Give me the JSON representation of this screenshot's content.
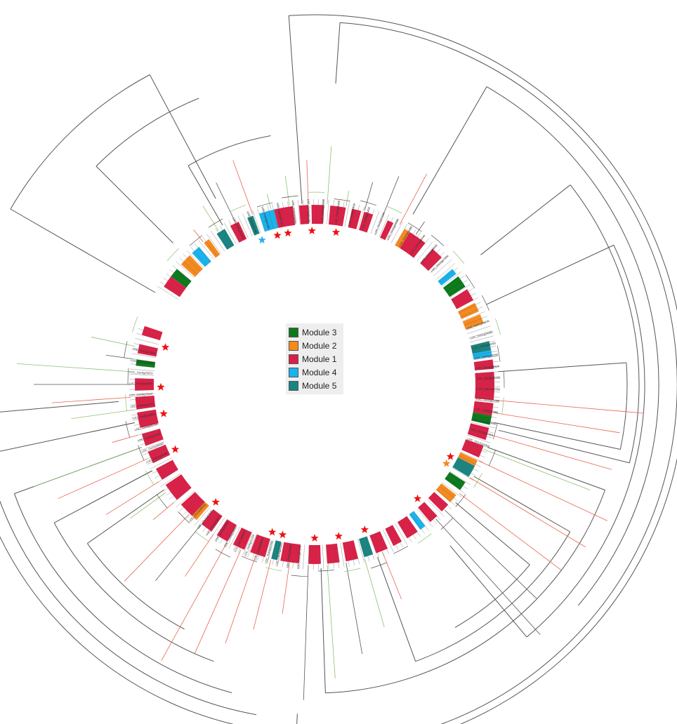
{
  "colors": {
    "branch_gray": "#555555",
    "branch_red": "#e8654d",
    "branch_green": "#8fbf6e",
    "star_red": "#ee1111",
    "star_orange": "#f08a1a",
    "star_blue": "#2ab0e6"
  },
  "legend": {
    "items": [
      {
        "label": "Module 3",
        "color": "#0b7a1c"
      },
      {
        "label": "Module 2",
        "color": "#f58a1f"
      },
      {
        "label": "Module 1",
        "color": "#dc1f46"
      },
      {
        "label": "Module 4",
        "color": "#19b3ee"
      },
      {
        "label": "Module 5",
        "color": "#188582"
      }
    ]
  },
  "leaf_labels": {
    "top": [
      "LOC_Os01g01650",
      "LOC_Os02g03790",
      "LOC_Os03g01390",
      "LOC_Os03g02710",
      "LOC_Os04g05030",
      "LOC_Os05g05290",
      "LOC_Os06g02090",
      "LOC_Os07g01410",
      "LOC_Os08g03510",
      "LOC_Os09g01470",
      "LOC_Os10g02210",
      "LOC_Os11g04090",
      "LOC_Os12g01280",
      "LOC_Os01g06740",
      "LOC_Os02g08010",
      "LOC_Os03g07290"
    ],
    "left_upper": [
      "LOC_Os01g60490",
      "LOC_Os02g38480",
      "LOC_Os03g19780",
      "LOC_Os04g46740",
      "LOC_Os05g18950",
      "LOC_Os06g01670",
      "LOC_Os08g29410",
      "LOC_Os09g28490",
      "LOC_Os10g25070",
      "LOC_Os11g02390",
      "LOC_Os12g40890"
    ],
    "right": [
      "LOC_Os01g14670",
      "LOC_Os02g24490",
      "LOC_Os03g40490",
      "LOC_Os04g19280",
      "LOC_Os05g48500",
      "LOC_Os06g35430",
      "LOC_Os07g32560",
      "LOC_Os08g04890",
      "LOC_Os09g29960",
      "LOC_Os10g23490",
      "LOC_Os11g30410",
      "LOC_Os12g24320"
    ],
    "bottom": [
      "LOC_Os01g57170",
      "LOC_Os02g50490",
      "LOC_Os03g55380",
      "LOC_Os04g52560",
      "LOC_Os05g49220",
      "LOC_Os06g41330",
      "LOC_Os07g44830",
      "LOC_Os08g39810",
      "LOC_Os09g38960",
      "LOC_Os10g39570",
      "LOC_Os11g44690",
      "LOC_Os12g38910"
    ]
  }
}
